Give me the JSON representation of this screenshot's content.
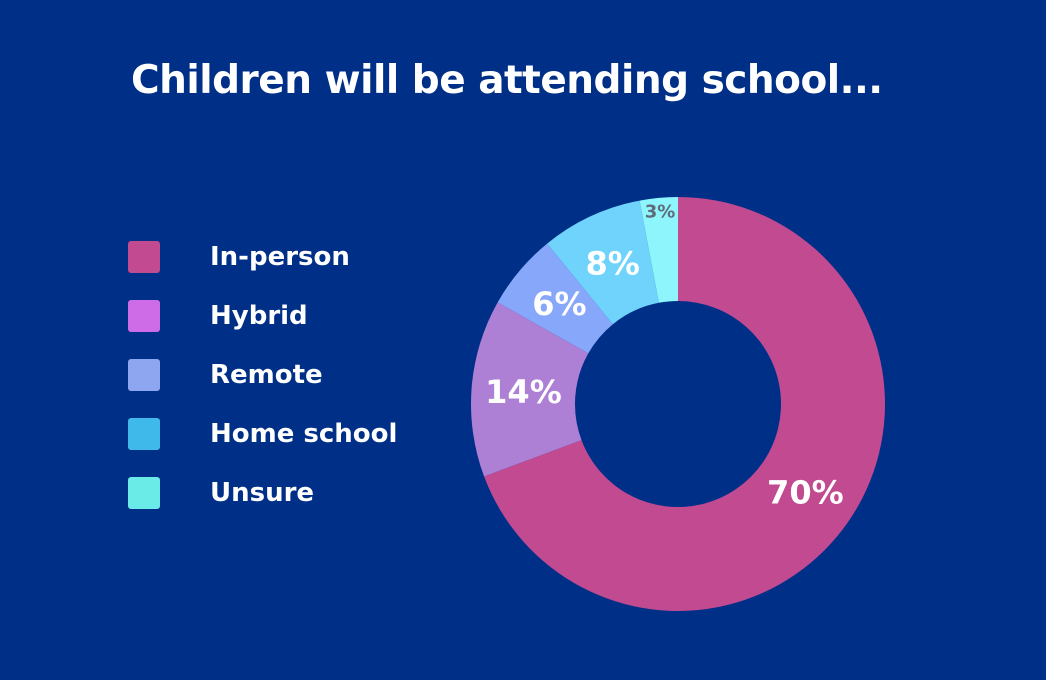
{
  "title": "Children will be attending school...",
  "colors": {
    "background": "#002f87",
    "text": "#ffffff",
    "small_label": "#5f6b7a"
  },
  "chart_data": {
    "type": "pie",
    "donut": true,
    "title": "Children will be attending school...",
    "legend_position": "left",
    "slices": [
      {
        "label": "In-person",
        "value": 70,
        "display": "70%",
        "color": "#c14a91",
        "legend_color": "#c14a91"
      },
      {
        "label": "Hybrid",
        "value": 14,
        "display": "14%",
        "color": "#ad80d6",
        "legend_color": "#cd6ce6"
      },
      {
        "label": "Remote",
        "value": 6,
        "display": "6%",
        "color": "#87a7fa",
        "legend_color": "#8ea5f0"
      },
      {
        "label": "Home school",
        "value": 8,
        "display": "8%",
        "color": "#6fd3fc",
        "legend_color": "#3fb8ea"
      },
      {
        "label": "Unsure",
        "value": 3,
        "display": "3%",
        "color": "#8ef5fd",
        "legend_color": "#6bebe8"
      }
    ]
  }
}
